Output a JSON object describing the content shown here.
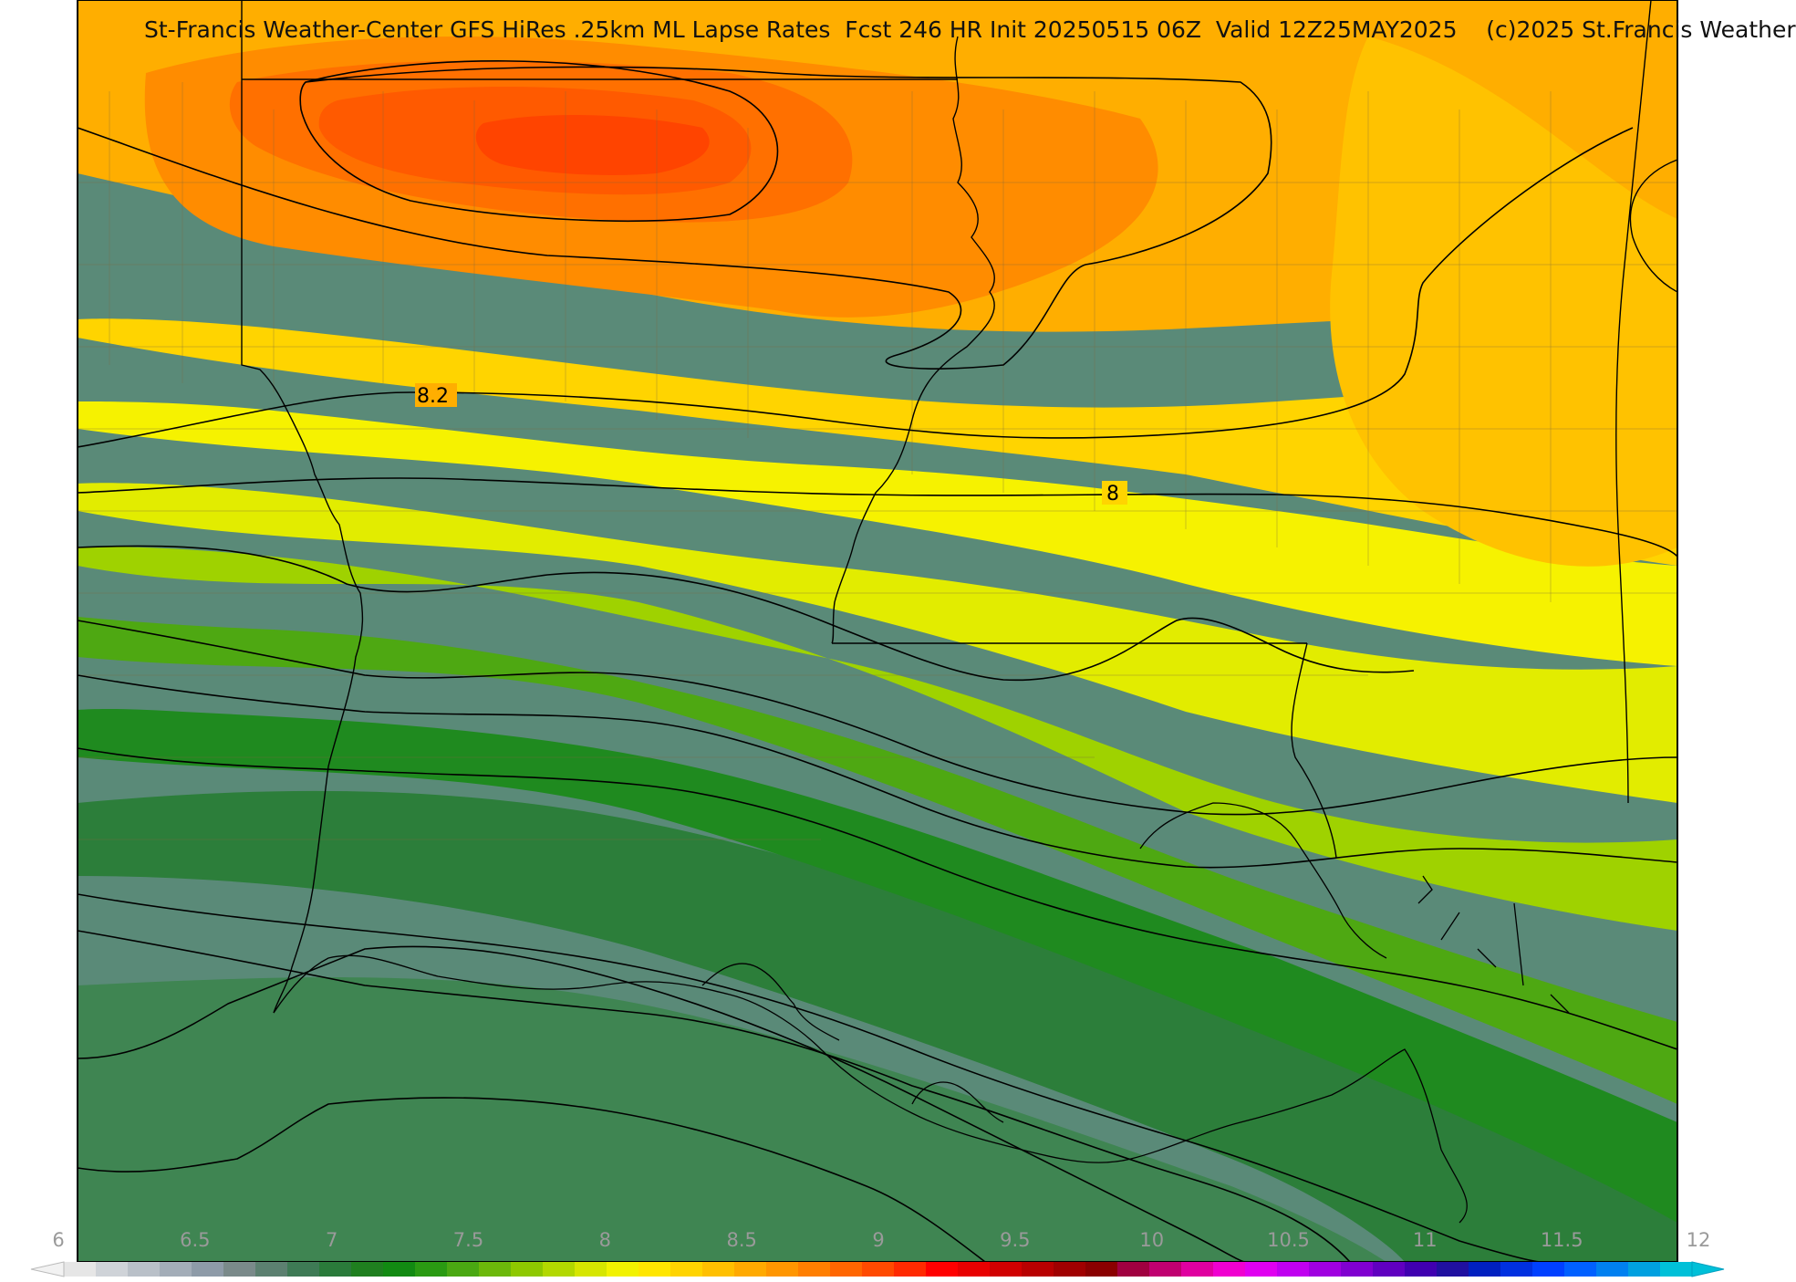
{
  "map": {
    "title": "St-Francis Weather-Center GFS HiRes .25km ML Lapse Rates  Fcst 246 HR Init 20250515 06Z  Valid 12Z25MAY2025    (c)2025 St.Francis Weather",
    "contour_labels": [
      "8.2",
      "8"
    ],
    "colorbar": {
      "tick_labels": [
        "6",
        "6.5",
        "7",
        "7.5",
        "8",
        "8.5",
        "9",
        "9.5",
        "10",
        "10.5",
        "11",
        "11.5",
        "12"
      ],
      "min": 6,
      "max": 12,
      "colors": [
        "#e6e6e6",
        "#cfd3d8",
        "#b9c0c8",
        "#a3adb8",
        "#8e9ba8",
        "#7a8a8a",
        "#5c8070",
        "#3e7a55",
        "#2a7a3a",
        "#1f7f1f",
        "#128a12",
        "#2a9a12",
        "#4aa812",
        "#6cb80a",
        "#8ec800",
        "#b2d800",
        "#d6e600",
        "#f2f200",
        "#ffe600",
        "#ffd400",
        "#ffc000",
        "#ffaa00",
        "#ff9600",
        "#ff7f00",
        "#ff6600",
        "#ff4a00",
        "#ff2a00",
        "#ff0000",
        "#e80000",
        "#d00000",
        "#b80000",
        "#a00000",
        "#8a0000",
        "#a00040",
        "#c00070",
        "#e000a0",
        "#f000d0",
        "#e000f0",
        "#c000f0",
        "#a000e0",
        "#8000d0",
        "#6000c0",
        "#4000b0",
        "#2010a0",
        "#0020c0",
        "#0030e0",
        "#0040ff",
        "#0060ff",
        "#0080f0",
        "#00a0e0",
        "#00c0d8"
      ]
    },
    "shading_colors": {
      "orange_red": "#ff4a00",
      "orange": "#ff8c00",
      "yellow_orange": "#ffae00",
      "yellow": "#f2f200",
      "yellow_green": "#cde400",
      "green": "#2a8a12",
      "grey_green": "#4f8a6a"
    }
  }
}
